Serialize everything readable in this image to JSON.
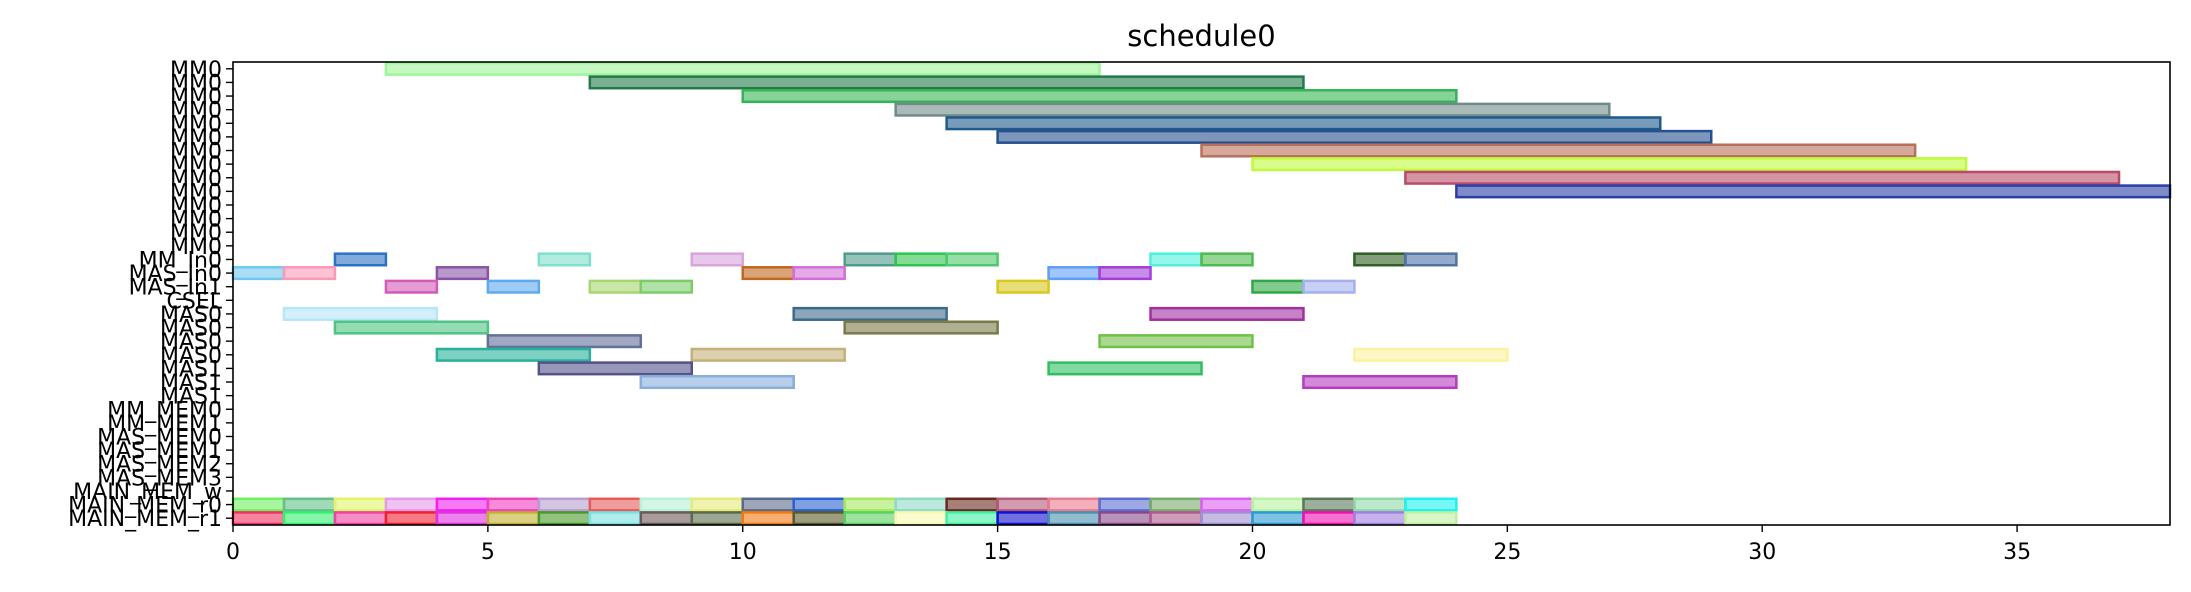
{
  "chart_data": {
    "type": "gantt",
    "title": "schedule0",
    "xlabel": "",
    "ylabel": "",
    "xlim": [
      0,
      38
    ],
    "xticks": [
      0,
      5,
      10,
      15,
      20,
      25,
      30,
      35
    ],
    "grid": false,
    "rows": [
      "MM0",
      "MM0",
      "MM0",
      "MM0",
      "MM0",
      "MM0",
      "MM0",
      "MM0",
      "MM0",
      "MM0",
      "MM0",
      "MM0",
      "MM0",
      "MM0",
      "MM_In0",
      "MAS_In0",
      "MAS_In1",
      "CSEL",
      "MAS0",
      "MAS0",
      "MAS0",
      "MAS0",
      "MAS1",
      "MAS1",
      "MAS1",
      "MM_MEM0",
      "MM_MEM1",
      "MAS_MEM0",
      "MAS_MEM1",
      "MAS_MEM2",
      "MAS_MEM3",
      "MAIN_MEM_w",
      "MAIN_MEM_r0",
      "MAIN_MEM_r1"
    ],
    "tasks": [
      {
        "row": 0,
        "start": 3,
        "end": 17,
        "color": "#9ef59a"
      },
      {
        "row": 1,
        "start": 7,
        "end": 21,
        "color": "#237a49"
      },
      {
        "row": 2,
        "start": 10,
        "end": 24,
        "color": "#36b454"
      },
      {
        "row": 3,
        "start": 13,
        "end": 27,
        "color": "#6f8c8a"
      },
      {
        "row": 4,
        "start": 14,
        "end": 28,
        "color": "#1e5a8a"
      },
      {
        "row": 5,
        "start": 15,
        "end": 29,
        "color": "#26508f"
      },
      {
        "row": 6,
        "start": 19,
        "end": 33,
        "color": "#b8705a"
      },
      {
        "row": 7,
        "start": 20,
        "end": 34,
        "color": "#c0fa3c"
      },
      {
        "row": 8,
        "start": 23,
        "end": 37,
        "color": "#b84c68"
      },
      {
        "row": 9,
        "start": 24,
        "end": 38,
        "color": "#2a3fa6"
      },
      {
        "row": 14,
        "start": 2,
        "end": 3,
        "color": "#2b73c2"
      },
      {
        "row": 14,
        "start": 6,
        "end": 7,
        "color": "#7fe0cc"
      },
      {
        "row": 14,
        "start": 9,
        "end": 10,
        "color": "#d8a4dc"
      },
      {
        "row": 14,
        "start": 12,
        "end": 13,
        "color": "#4f9b8c"
      },
      {
        "row": 14,
        "start": 13,
        "end": 14,
        "color": "#2fc44f"
      },
      {
        "row": 14,
        "start": 14,
        "end": 15,
        "color": "#4ec96b"
      },
      {
        "row": 14,
        "start": 18,
        "end": 19,
        "color": "#4ff0dc"
      },
      {
        "row": 14,
        "start": 19,
        "end": 20,
        "color": "#4fba4f"
      },
      {
        "row": 14,
        "start": 22,
        "end": 23,
        "color": "#2f5f22"
      },
      {
        "row": 14,
        "start": 23,
        "end": 24,
        "color": "#4e72a6"
      },
      {
        "row": 15,
        "start": 0,
        "end": 1,
        "color": "#6fc8ee"
      },
      {
        "row": 15,
        "start": 1,
        "end": 2,
        "color": "#fb9ab8"
      },
      {
        "row": 15,
        "start": 4,
        "end": 5,
        "color": "#8a54a6"
      },
      {
        "row": 15,
        "start": 10,
        "end": 11,
        "color": "#c06820"
      },
      {
        "row": 15,
        "start": 11,
        "end": 12,
        "color": "#d070d8"
      },
      {
        "row": 15,
        "start": 16,
        "end": 17,
        "color": "#5f9ef5"
      },
      {
        "row": 15,
        "start": 17,
        "end": 18,
        "color": "#a23fd8"
      },
      {
        "row": 16,
        "start": 3,
        "end": 4,
        "color": "#d45ab8"
      },
      {
        "row": 16,
        "start": 5,
        "end": 6,
        "color": "#5eaaf0"
      },
      {
        "row": 16,
        "start": 7,
        "end": 8,
        "color": "#a6d670"
      },
      {
        "row": 16,
        "start": 8,
        "end": 9,
        "color": "#7ccd6a"
      },
      {
        "row": 16,
        "start": 15,
        "end": 16,
        "color": "#d8c81f"
      },
      {
        "row": 16,
        "start": 20,
        "end": 21,
        "color": "#2fa845"
      },
      {
        "row": 16,
        "start": 21,
        "end": 22,
        "color": "#a4b0f0"
      },
      {
        "row": 18,
        "start": 1,
        "end": 4,
        "color": "#b8e6f8"
      },
      {
        "row": 18,
        "start": 11,
        "end": 14,
        "color": "#3e6a8a"
      },
      {
        "row": 18,
        "start": 18,
        "end": 21,
        "color": "#a02fa0"
      },
      {
        "row": 19,
        "start": 2,
        "end": 5,
        "color": "#4fc484"
      },
      {
        "row": 19,
        "start": 12,
        "end": 15,
        "color": "#7a7a4a"
      },
      {
        "row": 20,
        "start": 5,
        "end": 8,
        "color": "#62709a"
      },
      {
        "row": 20,
        "start": 17,
        "end": 20,
        "color": "#70c048"
      },
      {
        "row": 21,
        "start": 4,
        "end": 7,
        "color": "#27b09a"
      },
      {
        "row": 21,
        "start": 9,
        "end": 12,
        "color": "#c4b078"
      },
      {
        "row": 21,
        "start": 22,
        "end": 25,
        "color": "#fbf2a0"
      },
      {
        "row": 22,
        "start": 6,
        "end": 9,
        "color": "#54528a"
      },
      {
        "row": 22,
        "start": 16,
        "end": 19,
        "color": "#2fbf62"
      },
      {
        "row": 23,
        "start": 8,
        "end": 11,
        "color": "#88aedc"
      },
      {
        "row": 23,
        "start": 21,
        "end": 24,
        "color": "#b53cbf"
      },
      {
        "row": 32,
        "start": 0,
        "end": 1,
        "color": "#6ff060"
      },
      {
        "row": 32,
        "start": 1,
        "end": 2,
        "color": "#64c08a"
      },
      {
        "row": 32,
        "start": 2,
        "end": 3,
        "color": "#e2f56a"
      },
      {
        "row": 32,
        "start": 3,
        "end": 4,
        "color": "#e49ae8"
      },
      {
        "row": 32,
        "start": 4,
        "end": 5,
        "color": "#f020f0"
      },
      {
        "row": 32,
        "start": 5,
        "end": 6,
        "color": "#f040c0"
      },
      {
        "row": 32,
        "start": 6,
        "end": 7,
        "color": "#b89ed0"
      },
      {
        "row": 32,
        "start": 7,
        "end": 8,
        "color": "#e85a5a"
      },
      {
        "row": 32,
        "start": 8,
        "end": 9,
        "color": "#b8f0d8"
      },
      {
        "row": 32,
        "start": 9,
        "end": 10,
        "color": "#e6ea7a"
      },
      {
        "row": 32,
        "start": 10,
        "end": 11,
        "color": "#5c6a8a"
      },
      {
        "row": 32,
        "start": 11,
        "end": 12,
        "color": "#2a62d0"
      },
      {
        "row": 32,
        "start": 12,
        "end": 13,
        "color": "#a6e860"
      },
      {
        "row": 32,
        "start": 13,
        "end": 14,
        "color": "#90d8c8"
      },
      {
        "row": 32,
        "start": 14,
        "end": 15,
        "color": "#6a2a22"
      },
      {
        "row": 32,
        "start": 15,
        "end": 16,
        "color": "#b45a78"
      },
      {
        "row": 32,
        "start": 16,
        "end": 17,
        "color": "#ea7a90"
      },
      {
        "row": 32,
        "start": 17,
        "end": 18,
        "color": "#5e6ed0"
      },
      {
        "row": 32,
        "start": 18,
        "end": 19,
        "color": "#7aaa6a"
      },
      {
        "row": 32,
        "start": 19,
        "end": 20,
        "color": "#dc60f0"
      },
      {
        "row": 32,
        "start": 20,
        "end": 21,
        "color": "#b8f2a0"
      },
      {
        "row": 32,
        "start": 21,
        "end": 22,
        "color": "#5a7a5a"
      },
      {
        "row": 32,
        "start": 22,
        "end": 23,
        "color": "#90d8a8"
      },
      {
        "row": 32,
        "start": 23,
        "end": 24,
        "color": "#1cf0f0"
      },
      {
        "row": 33,
        "start": 0,
        "end": 1,
        "color": "#f03060"
      },
      {
        "row": 33,
        "start": 1,
        "end": 2,
        "color": "#36f070"
      },
      {
        "row": 33,
        "start": 2,
        "end": 3,
        "color": "#f040a0"
      },
      {
        "row": 33,
        "start": 3,
        "end": 4,
        "color": "#f02030"
      },
      {
        "row": 33,
        "start": 4,
        "end": 5,
        "color": "#e030e0"
      },
      {
        "row": 33,
        "start": 5,
        "end": 6,
        "color": "#c0b030"
      },
      {
        "row": 33,
        "start": 6,
        "end": 7,
        "color": "#4a9a2a"
      },
      {
        "row": 33,
        "start": 7,
        "end": 8,
        "color": "#7ae0e0"
      },
      {
        "row": 33,
        "start": 8,
        "end": 9,
        "color": "#6a5a5a"
      },
      {
        "row": 33,
        "start": 9,
        "end": 10,
        "color": "#5a6a4a"
      },
      {
        "row": 33,
        "start": 10,
        "end": 11,
        "color": "#f07a10"
      },
      {
        "row": 33,
        "start": 11,
        "end": 12,
        "color": "#5a5a2a"
      },
      {
        "row": 33,
        "start": 12,
        "end": 13,
        "color": "#5ad060"
      },
      {
        "row": 33,
        "start": 13,
        "end": 14,
        "color": "#f8f8b0"
      },
      {
        "row": 33,
        "start": 14,
        "end": 15,
        "color": "#40f0a0"
      },
      {
        "row": 33,
        "start": 15,
        "end": 16,
        "color": "#1010d0"
      },
      {
        "row": 33,
        "start": 16,
        "end": 17,
        "color": "#4a90b0"
      },
      {
        "row": 33,
        "start": 17,
        "end": 18,
        "color": "#8a4a8a"
      },
      {
        "row": 33,
        "start": 18,
        "end": 19,
        "color": "#b05a90"
      },
      {
        "row": 33,
        "start": 19,
        "end": 20,
        "color": "#a090d0"
      },
      {
        "row": 33,
        "start": 20,
        "end": 21,
        "color": "#2a9ad0"
      },
      {
        "row": 33,
        "start": 21,
        "end": 22,
        "color": "#f010b0"
      },
      {
        "row": 33,
        "start": 22,
        "end": 23,
        "color": "#a080e0"
      },
      {
        "row": 33,
        "start": 23,
        "end": 24,
        "color": "#c0f0a0"
      }
    ]
  }
}
